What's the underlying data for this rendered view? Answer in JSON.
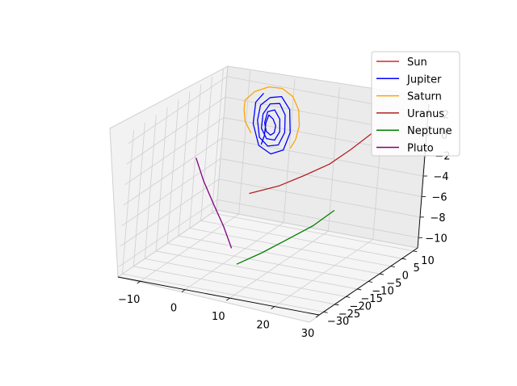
{
  "chart_data": {
    "type": "line",
    "projection": "3d",
    "title": "",
    "xlabel": "",
    "ylabel": "",
    "zlabel": "",
    "grid": true,
    "legend_position": "top-right",
    "xlim": [
      -15,
      30
    ],
    "ylim": [
      -32,
      12
    ],
    "zlim": [
      -11,
      3
    ],
    "x_ticks": [
      "−10",
      "0",
      "10",
      "20",
      "30"
    ],
    "y_ticks": [
      "−30",
      "−25",
      "−20",
      "−15",
      "−10",
      "−5",
      "0",
      "5",
      "10"
    ],
    "z_ticks": [
      "−10",
      "−8",
      "−6",
      "−4",
      "−2",
      "0",
      "2"
    ],
    "series": [
      {
        "name": "Sun",
        "color": "#d62728",
        "points": []
      },
      {
        "name": "Jupiter",
        "color": "#0000ff",
        "points": [
          [
            -3,
            5,
            -2.6
          ],
          [
            -2,
            4,
            -1.5
          ],
          [
            -1,
            2,
            -0.5
          ],
          [
            0,
            0,
            0.5
          ],
          [
            0.5,
            0,
            1.3
          ],
          [
            1.5,
            0,
            1.0
          ],
          [
            2.2,
            0,
            0.4
          ],
          [
            2.0,
            0,
            -0.3
          ],
          [
            1.2,
            0,
            -0.6
          ],
          [
            0.2,
            0,
            -0.3
          ],
          [
            -0.3,
            0,
            0.5
          ],
          [
            0.2,
            0,
            1.6
          ],
          [
            1.7,
            0,
            1.9
          ],
          [
            3.0,
            0,
            1.1
          ],
          [
            3.2,
            0,
            -0.1
          ],
          [
            2.2,
            0,
            -1.0
          ],
          [
            0.4,
            0,
            -1.0
          ],
          [
            -0.9,
            0,
            -0.1
          ],
          [
            -0.8,
            0,
            1.3
          ],
          [
            0.6,
            0,
            2.4
          ],
          [
            2.7,
            0,
            2.6
          ],
          [
            4.1,
            0,
            1.6
          ],
          [
            4.3,
            0,
            -0.1
          ],
          [
            3.1,
            0,
            -1.4
          ],
          [
            0.8,
            0,
            -1.7
          ],
          [
            -1.2,
            0,
            -1.0
          ],
          [
            -1.9,
            0,
            0.6
          ],
          [
            -1.5,
            0,
            2.1
          ],
          [
            0.5,
            0,
            3.0
          ],
          [
            3.0,
            0,
            3.3
          ],
          [
            5.0,
            0,
            2.2
          ],
          [
            5.5,
            0,
            0.0
          ],
          [
            4.3,
            0,
            -1.8
          ],
          [
            1.6,
            0,
            -2.4
          ],
          [
            -1.2,
            0,
            -1.8
          ],
          [
            -2.8,
            0,
            0.2
          ],
          [
            -2.6,
            0,
            2.3
          ],
          [
            -1.0,
            0,
            3.3
          ]
        ]
      },
      {
        "name": "Saturn",
        "color": "#ffa500",
        "points": [
          [
            -5,
            4,
            -1.5
          ],
          [
            -6,
            3,
            -0.3
          ],
          [
            -6,
            2,
            1.0
          ],
          [
            -5,
            0,
            2.3
          ],
          [
            -3,
            0,
            3.3
          ],
          [
            0,
            0,
            4.0
          ],
          [
            3,
            0,
            4.1
          ],
          [
            5.5,
            0,
            3.5
          ],
          [
            7,
            0,
            2.3
          ],
          [
            7.4,
            0,
            0.8
          ],
          [
            6.8,
            0,
            -0.6
          ],
          [
            5.8,
            0,
            -1.5
          ]
        ]
      },
      {
        "name": "Uranus",
        "color": "#b22222",
        "points": [
          [
            5,
            -16,
            -3.6
          ],
          [
            10,
            -13,
            -2.9
          ],
          [
            14,
            -10,
            -2.0
          ],
          [
            18,
            -7,
            -1.0
          ],
          [
            21,
            -4,
            0.2
          ],
          [
            24,
            -1,
            1.6
          ]
        ]
      },
      {
        "name": "Neptune",
        "color": "#008000",
        "points": [
          [
            10,
            -30,
            -8.0
          ],
          [
            14,
            -27,
            -7.0
          ],
          [
            18,
            -24,
            -5.8
          ],
          [
            22,
            -21,
            -4.6
          ],
          [
            25,
            -18,
            -3.3
          ]
        ]
      },
      {
        "name": "Pluto",
        "color": "#800080",
        "points": [
          [
            -12,
            -6,
            -3.0
          ],
          [
            -9,
            -8,
            -4.7
          ],
          [
            -5,
            -11,
            -6.2
          ],
          [
            -1,
            -14,
            -7.6
          ],
          [
            3,
            -18,
            -8.8
          ]
        ]
      }
    ]
  }
}
